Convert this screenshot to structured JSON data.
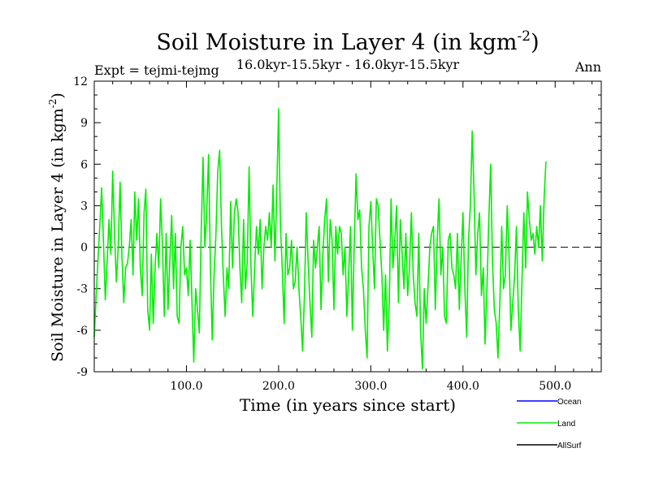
{
  "chart_data": {
    "type": "line",
    "title": "Soil Moisture in Layer 4 (in kgm",
    "title_sup": "-2",
    "title_close": ")",
    "subtitle": "16.0kyr-15.5kyr - 16.0kyr-15.5kyr",
    "experiment_label": "Expt = tejmi-tejmg",
    "season_label": "Ann",
    "xlabel": "Time (in years since start)",
    "ylabel": "Soil Moisture in Layer 4 (in kgm",
    "ylabel_sup": "-2",
    "ylabel_close": ")",
    "xlim": [
      0,
      550
    ],
    "ylim": [
      -9,
      12
    ],
    "x_ticks": [
      100,
      200,
      300,
      400,
      500
    ],
    "x_tick_labels": [
      "100.0",
      "200.0",
      "300.0",
      "400.0",
      "500.0"
    ],
    "y_ticks": [
      -9,
      -6,
      -3,
      0,
      3,
      6,
      9,
      12
    ],
    "y_tick_labels": [
      "-9",
      "-6",
      "-3",
      "0",
      "3",
      "6",
      "9",
      "12"
    ],
    "zero_line": true,
    "legend": [
      {
        "name": "Ocean",
        "color": "#0000ff"
      },
      {
        "name": "Land",
        "color": "#00ee00"
      },
      {
        "name": "AllSurf",
        "color": "#000000"
      }
    ],
    "series": [
      {
        "name": "Land",
        "color": "#00ee00",
        "x_start": 0,
        "x_step": 2,
        "values": [
          -6.5,
          -3.5,
          -1.0,
          1.5,
          4.3,
          0.5,
          -3.8,
          -1.0,
          2.0,
          -0.5,
          5.5,
          1.0,
          -2.5,
          0.0,
          4.7,
          -0.5,
          -4.0,
          -1.5,
          -1.2,
          0.0,
          2.0,
          -2.0,
          4.0,
          0.5,
          3.5,
          -1.5,
          -3.5,
          2.5,
          4.2,
          -4.5,
          -6.0,
          -0.5,
          -5.5,
          -1.5,
          1.0,
          -1.5,
          3.5,
          0.0,
          -5.0,
          1.0,
          -4.5,
          -1.0,
          2.3,
          -3.0,
          1.0,
          -5.0,
          -5.5,
          0.0,
          1.5,
          -2.0,
          -1.5,
          -3.5,
          0.5,
          -4.0,
          -8.3,
          -3.0,
          -4.5,
          -6.2,
          1.0,
          6.5,
          0.0,
          2.5,
          6.7,
          -1.5,
          -6.7,
          -2.0,
          1.0,
          5.5,
          7.0,
          1.5,
          -2.0,
          -5.0,
          -1.5,
          -3.0,
          3.3,
          -1.5,
          2.5,
          3.5,
          2.5,
          -1.5,
          -4.0,
          2.0,
          -3.0,
          -1.0,
          5.8,
          -1.5,
          -5.0,
          -1.5,
          1.5,
          -0.5,
          2.0,
          -3.0,
          0.0,
          1.5,
          0.5,
          2.5,
          0.0,
          4.5,
          -1.0,
          4.0,
          10.0,
          1.5,
          -1.5,
          -5.5,
          1.0,
          -2.0,
          -1.5,
          0.5,
          -3.0,
          -2.5,
          0.0,
          -3.0,
          -5.0,
          -7.5,
          -3.5,
          2.5,
          -1.0,
          -4.0,
          -6.5,
          0.5,
          -1.5,
          0.0,
          1.5,
          -4.5,
          -0.5,
          2.0,
          3.5,
          -2.5,
          2.0,
          0.5,
          -4.5,
          1.5,
          -0.5,
          1.5,
          1.0,
          -2.0,
          0.0,
          -5.0,
          -2.0,
          1.5,
          -6.0,
          0.0,
          5.3,
          2.0,
          2.7,
          -1.5,
          -3.0,
          -6.0,
          -8.0,
          1.5,
          3.3,
          0.0,
          -3.0,
          3.5,
          3.0,
          0.5,
          -2.0,
          -6.0,
          -2.0,
          -7.5,
          -4.0,
          3.5,
          -1.5,
          0.5,
          3.0,
          -4.0,
          2.0,
          -0.5,
          -3.0,
          1.0,
          -3.5,
          -1.5,
          2.5,
          -2.0,
          -4.0,
          -5.0,
          1.0,
          -6.0,
          -8.8,
          -3.0,
          -5.5,
          -3.0,
          0.0,
          1.0,
          1.5,
          -4.5,
          0.5,
          3.5,
          -2.0,
          0.0,
          -5.0,
          -5.5,
          0.5,
          1.0,
          -1.5,
          -2.0,
          -3.0,
          1.0,
          -4.5,
          -1.0,
          2.5,
          -3.0,
          -6.5,
          0.5,
          3.0,
          8.4,
          4.0,
          -2.0,
          1.0,
          2.5,
          -3.5,
          -1.5,
          -7.0,
          -3.0,
          2.0,
          6.0,
          -1.0,
          -4.5,
          -5.5,
          -8.0,
          -4.0,
          1.5,
          -3.0,
          -2.0,
          3.0,
          -0.5,
          -6.0,
          -4.0,
          -2.0,
          1.5,
          -4.5,
          -7.5,
          -2.5,
          2.5,
          -1.5,
          4.0,
          2.0,
          0.5,
          1.0,
          -0.5,
          1.5,
          0.0,
          3.0,
          -1.0,
          3.5,
          6.2
        ]
      }
    ]
  }
}
